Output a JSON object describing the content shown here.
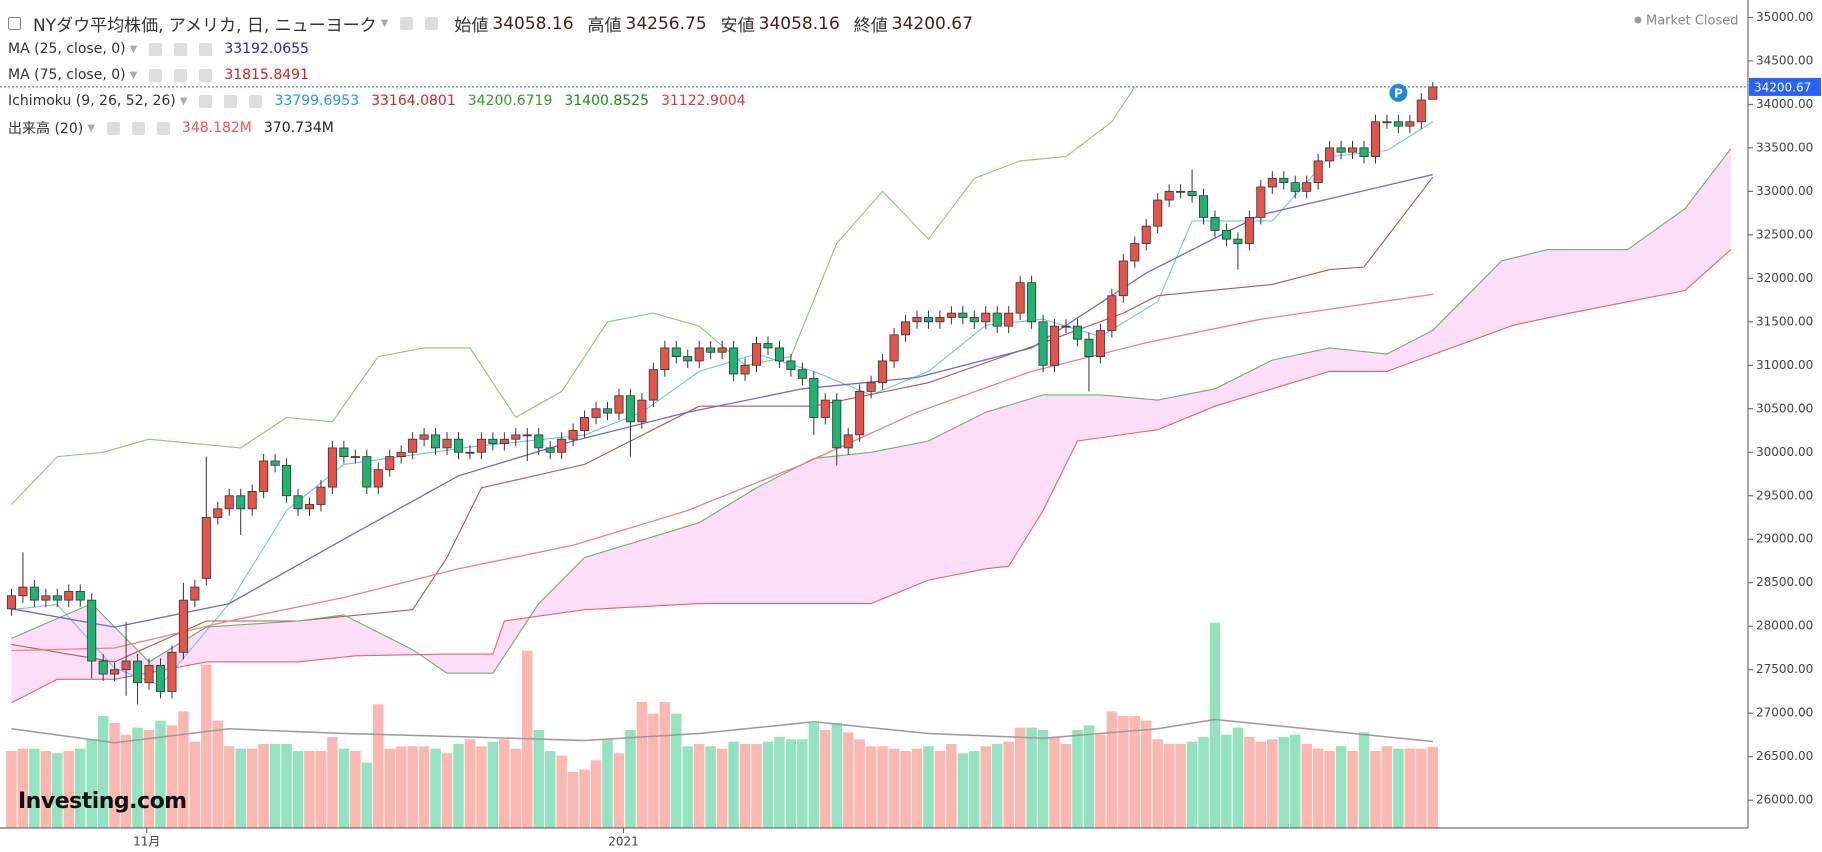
{
  "header": {
    "title": "NYダウ平均株価, アメリカ, 日, ニューヨーク",
    "open_label": "始値",
    "high_label": "高値",
    "low_label": "安値",
    "close_label": "終値",
    "status": "Market Closed",
    "logo": "Investing.com",
    "marker": "P"
  },
  "chart_data": {
    "type": "candlestick",
    "xlim": [
      -1,
      151.5
    ],
    "ylim": [
      25680,
      35200
    ],
    "xticks": [
      {
        "value": 11.8,
        "label": "11月"
      },
      {
        "value": 53.4,
        "label": "2021"
      }
    ],
    "yticks": [
      {
        "value": 26000,
        "label": "26000.00"
      },
      {
        "value": 26500,
        "label": "26500.00"
      },
      {
        "value": 27000,
        "label": "27000.00"
      },
      {
        "value": 27500,
        "label": "27500.00"
      },
      {
        "value": 28000,
        "label": "28000.00"
      },
      {
        "value": 28500,
        "label": "28500.00"
      },
      {
        "value": 29000,
        "label": "29000.00"
      },
      {
        "value": 29500,
        "label": "29500.00"
      },
      {
        "value": 30000,
        "label": "30000.00"
      },
      {
        "value": 30500,
        "label": "30500.00"
      },
      {
        "value": 31000,
        "label": "31000.00"
      },
      {
        "value": 31500,
        "label": "31500.00"
      },
      {
        "value": 32000,
        "label": "32000.00"
      },
      {
        "value": 32500,
        "label": "32500.00"
      },
      {
        "value": 33000,
        "label": "33000.00"
      },
      {
        "value": 33500,
        "label": "33500.00"
      },
      {
        "value": 34000,
        "label": "34000.00"
      },
      {
        "value": 34500,
        "label": "34500.00"
      },
      {
        "value": 35000,
        "label": "35000.00"
      }
    ],
    "up_color": "#e5534b",
    "down_color": "#1fb473",
    "marker_index": 121,
    "open": [
      28200,
      28350,
      28450,
      28300,
      28350,
      28300,
      28400,
      28300,
      27600,
      27450,
      27500,
      27600,
      27350,
      27550,
      27250,
      27700,
      28300,
      28550,
      29250,
      29350,
      29500,
      29350,
      29550,
      29900,
      29850,
      29500,
      29350,
      29400,
      29600,
      30050,
      29950,
      29950,
      29600,
      29800,
      29950,
      30000,
      30150,
      30200,
      30050,
      30150,
      30000,
      30000,
      30150,
      30100,
      30150,
      30200,
      30200,
      30050,
      30000,
      30150,
      30250,
      30400,
      30500,
      30450,
      30650,
      30350,
      30600,
      30950,
      31200,
      31100,
      31050,
      31200,
      31150,
      31200,
      30900,
      31000,
      31250,
      31200,
      31050,
      30950,
      30850,
      30400,
      30600,
      30050,
      30200,
      30700,
      30800,
      31050,
      31350,
      31500,
      31550,
      31500,
      31550,
      31600,
      31550,
      31500,
      31600,
      31450,
      31600,
      31950,
      31500,
      31000,
      31450,
      31450,
      31300,
      31100,
      31400,
      31800,
      32200,
      32400,
      32600,
      32900,
      33000,
      33000,
      32950,
      32700,
      32550,
      32450,
      32400,
      32700,
      33050,
      33150,
      33100,
      33000,
      33100,
      33350,
      33500,
      33450,
      33500,
      33400,
      33800,
      33800,
      33750,
      33800,
      34058.16
    ],
    "high": [
      28430,
      28850,
      28530,
      28430,
      28430,
      28480,
      28480,
      28380,
      27680,
      27580,
      28050,
      27680,
      27630,
      27630,
      27780,
      28500,
      28530,
      29950,
      29430,
      29580,
      29580,
      29630,
      29980,
      29980,
      29930,
      29580,
      29480,
      29680,
      30130,
      30130,
      30030,
      30030,
      29880,
      30030,
      30080,
      30230,
      30280,
      30280,
      30230,
      30230,
      30080,
      30230,
      30230,
      30230,
      30280,
      30280,
      30280,
      30130,
      30230,
      30330,
      30480,
      30580,
      30580,
      30730,
      30730,
      30680,
      31030,
      31280,
      31280,
      31180,
      31280,
      31280,
      31280,
      31280,
      31080,
      31330,
      31330,
      31280,
      31130,
      31030,
      30930,
      30680,
      30680,
      30280,
      30780,
      30880,
      31130,
      31430,
      31580,
      31630,
      31630,
      31630,
      31680,
      31680,
      31630,
      31680,
      31680,
      31680,
      32030,
      32030,
      31580,
      31530,
      31530,
      31530,
      31380,
      31480,
      31880,
      32280,
      32480,
      32680,
      32980,
      33080,
      33080,
      33250,
      33030,
      32780,
      32630,
      32530,
      32780,
      33130,
      33230,
      33230,
      33180,
      33180,
      33430,
      33580,
      33580,
      33580,
      33580,
      33880,
      33880,
      33880,
      33880,
      34130,
      34256.75
    ],
    "low": [
      28120,
      28270,
      28220,
      28220,
      28220,
      28220,
      28220,
      27400,
      27370,
      27370,
      27200,
      27100,
      27270,
      27170,
      27170,
      27620,
      28220,
      28470,
      29170,
      29270,
      29050,
      29270,
      29470,
      29770,
      29420,
      29270,
      29270,
      29320,
      29520,
      29870,
      29870,
      29520,
      29520,
      29720,
      29870,
      29920,
      30070,
      29970,
      29970,
      29920,
      29920,
      29920,
      30020,
      30020,
      30070,
      29900,
      29970,
      29920,
      29920,
      30070,
      30170,
      30320,
      30370,
      30370,
      29950,
      30270,
      30520,
      30870,
      31020,
      30970,
      30970,
      31070,
      31070,
      30820,
      30820,
      30920,
      31120,
      30970,
      30870,
      30770,
      30200,
      30320,
      29850,
      29970,
      30120,
      30620,
      30720,
      30970,
      31270,
      31420,
      31420,
      31420,
      31470,
      31470,
      31420,
      31420,
      31370,
      31370,
      31520,
      31420,
      30920,
      30920,
      31370,
      31220,
      30700,
      31020,
      31320,
      31720,
      32120,
      32320,
      32520,
      32820,
      32920,
      32870,
      32620,
      32470,
      32370,
      32100,
      32320,
      32620,
      32970,
      33020,
      32920,
      32920,
      33020,
      33270,
      33370,
      33370,
      33320,
      33320,
      33720,
      33670,
      33670,
      33720,
      34058.16
    ],
    "close": [
      28350,
      28450,
      28300,
      28350,
      28300,
      28400,
      28300,
      27600,
      27450,
      27500,
      27600,
      27350,
      27550,
      27250,
      27700,
      28300,
      28450,
      29250,
      29350,
      29500,
      29350,
      29550,
      29900,
      29850,
      29500,
      29350,
      29400,
      29600,
      30050,
      29950,
      29950,
      29600,
      29800,
      29950,
      30000,
      30150,
      30200,
      30050,
      30150,
      30000,
      30000,
      30150,
      30100,
      30150,
      30200,
      30200,
      30050,
      30000,
      30150,
      30250,
      30400,
      30500,
      30450,
      30650,
      30350,
      30600,
      30950,
      31200,
      31100,
      31050,
      31200,
      31150,
      31200,
      30900,
      31000,
      31250,
      31200,
      31050,
      30950,
      30850,
      30400,
      30600,
      30050,
      30200,
      30700,
      30800,
      31050,
      31350,
      31500,
      31550,
      31500,
      31550,
      31600,
      31550,
      31500,
      31600,
      31450,
      31600,
      31950,
      31500,
      31000,
      31450,
      31450,
      31300,
      31100,
      31400,
      31800,
      32200,
      32400,
      32600,
      32900,
      33000,
      33000,
      32950,
      32700,
      32550,
      32450,
      32400,
      32700,
      33050,
      33150,
      33100,
      33000,
      33100,
      33350,
      33500,
      33450,
      33500,
      33400,
      33800,
      33800,
      33750,
      33800,
      34050,
      34200.67
    ],
    "series": [
      {
        "name": "MA (25, close, 0)",
        "color": "#6a6ae0",
        "label_color": "#1f1fd6",
        "x": [
          0,
          9,
          19,
          29,
          39,
          49,
          59,
          69,
          79,
          89,
          99,
          109,
          124
        ],
        "values": [
          28200,
          27990,
          28260,
          29000,
          29730,
          30130,
          30460,
          30730,
          30860,
          31200,
          32060,
          32730,
          33192.0655
        ]
      },
      {
        "name": "MA (75, close, 0)",
        "color": "#f28080",
        "label_color": "#d61f1f",
        "x": [
          0,
          9,
          19,
          29,
          39,
          49,
          59,
          69,
          79,
          89,
          99,
          109,
          124
        ],
        "values": [
          27720,
          27750,
          28060,
          28330,
          28660,
          28930,
          29330,
          29860,
          30460,
          30930,
          31260,
          31530,
          31815.8491
        ]
      }
    ],
    "ichimoku": {
      "name": "Ichimoku (9, 26, 52, 26)",
      "cloud_color": "#fbd3f6",
      "lines": [
        {
          "color": "#6fc3f0",
          "label_color": "#2196f3",
          "x": [
            0,
            4,
            9,
            13,
            19,
            24,
            29,
            40,
            50,
            55,
            60,
            65,
            70,
            75,
            80,
            85,
            90,
            95,
            100,
            103,
            106,
            110,
            115,
            120,
            124
          ],
          "values": [
            28190,
            28250,
            27520,
            27320,
            28260,
            29330,
            29860,
            30060,
            30200,
            30460,
            30930,
            31130,
            30930,
            30660,
            30930,
            31460,
            31530,
            31330,
            31730,
            32660,
            32660,
            32660,
            33400,
            33470,
            33799.6953
          ]
        },
        {
          "color": "#b5574f",
          "label_color": "#c62828",
          "x": [
            0,
            9,
            17,
            25,
            35,
            38,
            41,
            50,
            60,
            70,
            80,
            90,
            97,
            100,
            110,
            115,
            118,
            124
          ],
          "values": [
            27790,
            27590,
            28060,
            28060,
            28190,
            28790,
            29590,
            29860,
            30530,
            30530,
            30800,
            31260,
            31600,
            31800,
            31930,
            32100,
            32130,
            33164.0801
          ]
        },
        {
          "color": "#8cc878",
          "label_color": "#3c9b2a",
          "x": [
            0,
            4,
            8,
            12,
            16,
            20,
            24,
            28,
            32,
            36,
            40,
            44,
            48,
            52,
            56,
            60,
            64,
            68,
            72,
            76,
            80,
            84,
            88,
            92,
            96,
            98
          ],
          "values": [
            29400,
            29950,
            30000,
            30150,
            30100,
            30050,
            30400,
            30350,
            31100,
            31200,
            31200,
            30400,
            30700,
            31500,
            31600,
            31450,
            31000,
            31100,
            32400,
            33000,
            32450,
            33150,
            33350,
            33400,
            33800,
            34200.6719
          ]
        },
        {
          "color": "#6fae6f",
          "label_color": "#1e8a1e",
          "x": [
            0,
            7,
            12,
            17,
            25,
            29,
            35,
            38,
            42,
            46,
            50,
            60,
            65,
            70,
            75,
            80,
            85,
            90,
            95,
            100,
            105,
            110,
            115,
            120,
            124,
            130,
            134,
            141,
            146,
            150
          ],
          "values": [
            27860,
            28260,
            27590,
            27990,
            28060,
            28130,
            27730,
            27460,
            27460,
            28260,
            28790,
            29190,
            29590,
            29930,
            30000,
            30130,
            30460,
            30660,
            30660,
            30600,
            30730,
            31060,
            31200,
            31130,
            31400.8525,
            32200,
            32330,
            32330,
            32800,
            33490
          ]
        },
        {
          "color": "#f06262",
          "label_color": "#e53935",
          "x": [
            0,
            4,
            9,
            17,
            25,
            30,
            38,
            42,
            43,
            50,
            60,
            70,
            75,
            80,
            85,
            87,
            90,
            93,
            100,
            105,
            110,
            115,
            120,
            124,
            131,
            136,
            141,
            146,
            150
          ],
          "values": [
            27120,
            27390,
            27390,
            27590,
            27590,
            27660,
            27680,
            27680,
            28060,
            28190,
            28260,
            28260,
            28260,
            28530,
            28660,
            28690,
            29330,
            30130,
            30260,
            30530,
            30730,
            30930,
            30930,
            31122.9004,
            31460,
            31600,
            31730,
            31860,
            32330
          ]
        }
      ]
    },
    "volume": {
      "name": "出来高 (20)",
      "label_color": "#ef5350",
      "lim": [
        0,
        900
      ],
      "up_color": "#fbb7b0",
      "down_color": "#93e3c2",
      "values": [
        330,
        340,
        340,
        330,
        320,
        330,
        340,
        380,
        480,
        450,
        400,
        430,
        420,
        460,
        440,
        500,
        370,
        700,
        460,
        350,
        340,
        340,
        360,
        360,
        360,
        330,
        330,
        330,
        390,
        340,
        330,
        280,
        530,
        340,
        350,
        350,
        350,
        340,
        320,
        360,
        380,
        350,
        370,
        380,
        340,
        760,
        420,
        330,
        310,
        240,
        250,
        290,
        380,
        320,
        420,
        540,
        490,
        540,
        490,
        350,
        360,
        350,
        340,
        370,
        360,
        360,
        370,
        390,
        380,
        380,
        450,
        420,
        450,
        410,
        380,
        350,
        350,
        340,
        330,
        340,
        350,
        330,
        360,
        320,
        330,
        350,
        360,
        370,
        430,
        430,
        420,
        390,
        360,
        420,
        440,
        400,
        500,
        480,
        480,
        460,
        380,
        360,
        360,
        370,
        390,
        880,
        400,
        430,
        390,
        370,
        380,
        390,
        400,
        360,
        340,
        330,
        350,
        330,
        410,
        330,
        350,
        340,
        340,
        340,
        348.182
      ],
      "value_labels": {
        "124": "348.182M"
      },
      "ma": {
        "color": "#9a9a9a",
        "x": [
          0,
          9,
          19,
          29,
          40,
          50,
          60,
          70,
          80,
          90,
          100,
          105,
          110,
          124
        ],
        "values": [
          425,
          365,
          425,
          405,
          390,
          375,
          405,
          455,
          405,
          385,
          425,
          465,
          440,
          370.734
        ],
        "value_labels": {
          "13": "370.734M"
        }
      }
    }
  }
}
